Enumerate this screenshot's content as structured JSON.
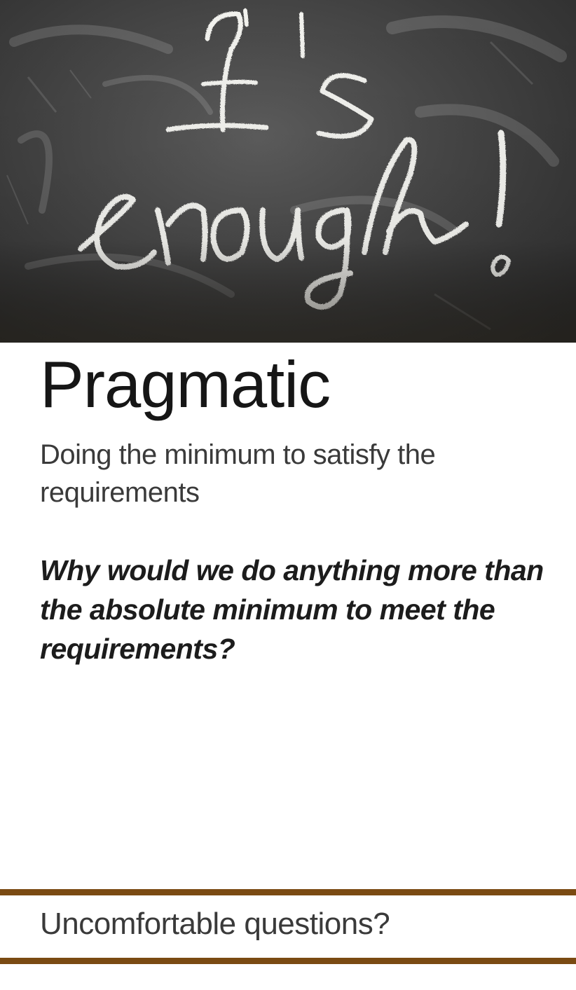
{
  "hero": {
    "chalk_text": "It's enough!"
  },
  "card": {
    "title": "Pragmatic",
    "subtitle": "Doing the minimum to satisfy the requirements",
    "question": "Why would we do anything more than the absolute minimum to meet the requirements?"
  },
  "footer": {
    "label": "Uncomfortable questions?"
  },
  "colors": {
    "rule": "#7a4a12",
    "chalk": "#f2f2ee",
    "board": "#4a4a4a"
  }
}
